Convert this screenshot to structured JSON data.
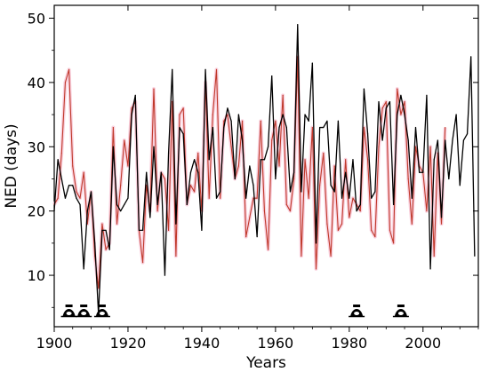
{
  "chart_data": {
    "type": "line",
    "title": "",
    "xlabel": "Years",
    "ylabel": "NED (days)",
    "xlim": [
      1900,
      2015
    ],
    "ylim": [
      2,
      52
    ],
    "xticks": [
      1900,
      1920,
      1940,
      1960,
      1980,
      2000
    ],
    "yticks": [
      10,
      20,
      30,
      40,
      50
    ],
    "grid": false,
    "legend": "none",
    "series": [
      {
        "color": "#000000",
        "x": [
          1900,
          1901,
          1902,
          1903,
          1904,
          1905,
          1906,
          1907,
          1908,
          1909,
          1910,
          1911,
          1912,
          1913,
          1914,
          1915,
          1916,
          1917,
          1918,
          1919,
          1920,
          1921,
          1922,
          1923,
          1924,
          1925,
          1926,
          1927,
          1928,
          1929,
          1930,
          1931,
          1932,
          1933,
          1934,
          1935,
          1936,
          1937,
          1938,
          1939,
          1940,
          1941,
          1942,
          1943,
          1944,
          1945,
          1946,
          1947,
          1948,
          1949,
          1950,
          1951,
          1952,
          1953,
          1954,
          1955,
          1956,
          1957,
          1958,
          1959,
          1960,
          1961,
          1962,
          1963,
          1964,
          1965,
          1966,
          1967,
          1968,
          1969,
          1970,
          1971,
          1972,
          1973,
          1974,
          1975,
          1976,
          1977,
          1978,
          1979,
          1980,
          1981,
          1982,
          1983,
          1984,
          1985,
          1986,
          1987,
          1988,
          1989,
          1990,
          1991,
          1992,
          1993,
          1994,
          1995,
          1996,
          1997,
          1998,
          1999,
          2000,
          2001,
          2002,
          2003,
          2004,
          2005,
          2006,
          2007,
          2008,
          2009,
          2010,
          2011,
          2012,
          2013,
          2014
        ],
        "y": [
          20,
          28,
          25,
          22,
          24,
          24,
          22,
          21,
          11,
          20,
          23,
          15,
          4,
          17,
          17,
          14,
          30,
          21,
          20,
          21,
          22,
          35,
          38,
          17,
          17,
          26,
          19,
          30,
          21,
          26,
          10,
          29,
          42,
          18,
          33,
          32,
          21,
          26,
          28,
          26,
          17,
          42,
          28,
          33,
          22,
          23,
          33,
          36,
          34,
          25,
          35,
          31,
          22,
          27,
          24,
          16,
          28,
          28,
          30,
          41,
          25,
          33,
          35,
          33,
          23,
          26,
          49,
          23,
          35,
          34,
          43,
          15,
          33,
          33,
          34,
          24,
          23,
          34,
          22,
          26,
          22,
          28,
          20,
          21,
          39,
          32,
          22,
          23,
          37,
          31,
          36,
          37,
          21,
          35,
          38,
          35,
          31,
          22,
          33,
          26,
          26,
          38,
          11,
          28,
          31,
          19,
          31,
          25,
          31,
          35,
          24,
          31,
          32,
          44,
          13
        ]
      },
      {
        "color": "#c0392b",
        "x": [
          1900,
          1901,
          1902,
          1903,
          1904,
          1905,
          1906,
          1907,
          1908,
          1909,
          1910,
          1911,
          1912,
          1913,
          1914,
          1915,
          1916,
          1917,
          1918,
          1919,
          1920,
          1921,
          1922,
          1923,
          1924,
          1925,
          1926,
          1927,
          1928,
          1929,
          1930,
          1931,
          1932,
          1933,
          1934,
          1935,
          1936,
          1937,
          1938,
          1939,
          1940,
          1941,
          1942,
          1943,
          1944,
          1945,
          1946,
          1947,
          1948,
          1949,
          1950,
          1951,
          1952,
          1953,
          1954,
          1955,
          1956,
          1957,
          1958,
          1959,
          1960,
          1961,
          1962,
          1963,
          1964,
          1965,
          1966,
          1967,
          1968,
          1969,
          1970,
          1971,
          1972,
          1973,
          1974,
          1975,
          1976,
          1977,
          1978,
          1979,
          1980,
          1981,
          1982,
          1983,
          1984,
          1985,
          1986,
          1987,
          1988,
          1989,
          1990,
          1991,
          1992,
          1993,
          1994,
          1995,
          1996,
          1997,
          1998,
          1999,
          2000,
          2001,
          2002,
          2003,
          2004,
          2005,
          2006,
          2007,
          2008,
          2009,
          2010,
          2011,
          2012,
          2013,
          2014
        ],
        "y": [
          21,
          22,
          29,
          40,
          42,
          27,
          23,
          22,
          26,
          18,
          23,
          13,
          8,
          18,
          14,
          15,
          33,
          18,
          24,
          31,
          27,
          36,
          37,
          17,
          12,
          24,
          20,
          39,
          20,
          26,
          25,
          17,
          37,
          13,
          35,
          36,
          21,
          24,
          23,
          29,
          20,
          40,
          22,
          35,
          42,
          22,
          34,
          35,
          30,
          25,
          27,
          34,
          16,
          19,
          22,
          22,
          34,
          20,
          14,
          31,
          34,
          27,
          38,
          21,
          20,
          25,
          44,
          13,
          28,
          22,
          33,
          11,
          24,
          29,
          18,
          13,
          27,
          17,
          18,
          28,
          19,
          22,
          21,
          20,
          33,
          28,
          17,
          16,
          30,
          36,
          37,
          17,
          15,
          39,
          35,
          37,
          25,
          18,
          30,
          27,
          26,
          20,
          30,
          13,
          29,
          18,
          33,
          null,
          null,
          null,
          null,
          null,
          null,
          null,
          null
        ]
      }
    ],
    "markers": {
      "icon": "hurricane-symbol-icon",
      "color": "#000000",
      "x": [
        1904,
        1908,
        1913,
        1982,
        1994
      ]
    }
  }
}
